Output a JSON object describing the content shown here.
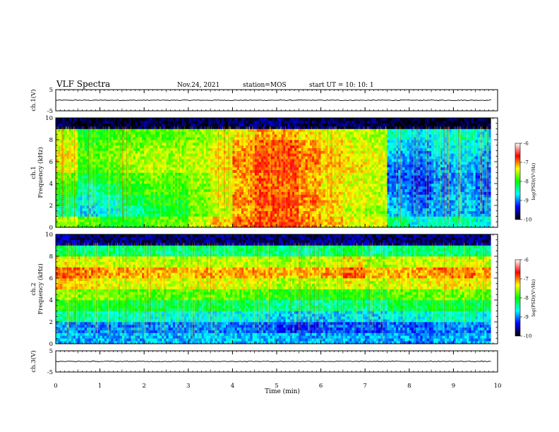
{
  "header": {
    "title": "VLF Spectra",
    "date": "Nov.24, 2021",
    "station": "station=MOS",
    "start": "start  UT  =   10: 10: 1"
  },
  "colorbar": {
    "label": "log(PSD)(V²/Hz)",
    "ticks": [
      "-6",
      "-7",
      "-8",
      "-9",
      "-10"
    ],
    "stops": [
      "#ffffff",
      "#ff0000",
      "#ffff00",
      "#00ff00",
      "#00ffff",
      "#0000ff",
      "#000000"
    ]
  },
  "chart_data": [
    {
      "type": "line",
      "id": "ch1-waveform",
      "ylabel": "ch.1(V)",
      "ylim": [
        -5,
        5
      ],
      "yticks": [
        "5",
        "-5"
      ],
      "x": [
        0,
        1,
        2,
        3,
        4,
        5,
        6,
        7,
        8,
        9,
        9.85
      ],
      "y": [
        0,
        0,
        0,
        0,
        0,
        0,
        0,
        0,
        0,
        0,
        0
      ]
    },
    {
      "type": "heatmap",
      "id": "ch1-spectrogram",
      "ylabel": "ch.1 Frequency (kHz)",
      "xlim": [
        0,
        10
      ],
      "ylim": [
        0,
        10
      ],
      "yticks": [
        "0",
        "2",
        "4",
        "6",
        "8",
        "10"
      ],
      "zlim": [
        -10,
        -6
      ],
      "data_extent_min": 9.85,
      "time_minutes": [
        0,
        0.5,
        1,
        1.5,
        2,
        2.5,
        3,
        3.5,
        4,
        4.5,
        5,
        5.5,
        6,
        6.5,
        7,
        7.5,
        8,
        8.5,
        9,
        9.5
      ],
      "frequency_khz": [
        0.5,
        1.5,
        2.5,
        3.5,
        4.5,
        5.5,
        6.5,
        7.5,
        8.5,
        9.5
      ],
      "log_psd": [
        [
          -7.6,
          -7.8,
          -8.0,
          -8.0,
          -7.8,
          -7.8,
          -7.5,
          -7.2,
          -6.9,
          -6.8,
          -6.8,
          -7.0,
          -7.2,
          -7.4,
          -7.4,
          -8.3,
          -8.6,
          -8.5,
          -8.4,
          -8.6
        ],
        [
          -8.4,
          -8.7,
          -8.6,
          -8.4,
          -8.2,
          -8.1,
          -7.8,
          -7.5,
          -7.1,
          -6.9,
          -6.9,
          -7.1,
          -7.3,
          -7.5,
          -7.6,
          -8.8,
          -9.0,
          -8.9,
          -8.8,
          -9.0
        ],
        [
          -8.2,
          -8.6,
          -8.5,
          -8.2,
          -8.0,
          -8.0,
          -7.7,
          -7.4,
          -7.0,
          -6.8,
          -6.8,
          -7.0,
          -7.2,
          -7.4,
          -7.5,
          -8.9,
          -9.1,
          -8.9,
          -8.8,
          -9.0
        ],
        [
          -8.0,
          -8.4,
          -8.2,
          -8.0,
          -7.8,
          -7.9,
          -7.7,
          -7.4,
          -7.1,
          -6.9,
          -6.9,
          -7.1,
          -7.3,
          -7.4,
          -7.5,
          -9.0,
          -9.2,
          -9.0,
          -8.9,
          -9.1
        ],
        [
          -7.8,
          -8.2,
          -8.0,
          -7.8,
          -7.7,
          -7.8,
          -7.6,
          -7.4,
          -7.1,
          -6.9,
          -6.9,
          -7.1,
          -7.3,
          -7.4,
          -7.5,
          -9.1,
          -9.2,
          -9.0,
          -8.9,
          -9.1
        ],
        [
          -7.4,
          -7.9,
          -7.8,
          -7.6,
          -7.5,
          -7.6,
          -7.5,
          -7.3,
          -7.0,
          -6.8,
          -6.8,
          -7.0,
          -7.2,
          -7.3,
          -7.4,
          -9.0,
          -9.1,
          -8.9,
          -8.8,
          -9.0
        ],
        [
          -7.3,
          -7.8,
          -7.7,
          -7.6,
          -7.5,
          -7.6,
          -7.5,
          -7.3,
          -7.0,
          -6.8,
          -6.8,
          -7.0,
          -7.2,
          -7.3,
          -7.4,
          -8.9,
          -9.0,
          -8.8,
          -8.7,
          -8.9
        ],
        [
          -7.4,
          -7.9,
          -7.8,
          -7.7,
          -7.6,
          -7.7,
          -7.6,
          -7.4,
          -7.1,
          -6.9,
          -6.9,
          -7.1,
          -7.3,
          -7.4,
          -7.5,
          -8.7,
          -8.8,
          -8.6,
          -8.6,
          -8.7
        ],
        [
          -7.6,
          -8.0,
          -7.9,
          -7.8,
          -7.8,
          -7.8,
          -7.7,
          -7.5,
          -7.3,
          -7.1,
          -7.1,
          -7.3,
          -7.4,
          -7.5,
          -7.6,
          -8.5,
          -8.7,
          -8.6,
          -8.5,
          -8.7
        ],
        [
          -9.8,
          -9.9,
          -9.9,
          -9.9,
          -9.8,
          -9.9,
          -9.8,
          -9.8,
          -9.7,
          -9.7,
          -9.7,
          -9.8,
          -9.8,
          -9.8,
          -9.8,
          -9.9,
          -9.9,
          -9.9,
          -9.9,
          -9.9
        ]
      ]
    },
    {
      "type": "heatmap",
      "id": "ch2-spectrogram",
      "ylabel": "ch.2 Frequency (kHz)",
      "xlim": [
        0,
        10
      ],
      "ylim": [
        0,
        10
      ],
      "yticks": [
        "0",
        "2",
        "4",
        "6",
        "8",
        "10"
      ],
      "zlim": [
        -10,
        -6
      ],
      "data_extent_min": 9.85,
      "time_minutes": [
        0,
        0.5,
        1,
        1.5,
        2,
        2.5,
        3,
        3.5,
        4,
        4.5,
        5,
        5.5,
        6,
        6.5,
        7,
        7.5,
        8,
        8.5,
        9,
        9.5
      ],
      "frequency_khz": [
        0.5,
        1.5,
        2.5,
        3.5,
        4.5,
        5.5,
        6.5,
        7.5,
        8.5,
        9.5
      ],
      "log_psd": [
        [
          -8.8,
          -8.9,
          -8.9,
          -8.9,
          -8.8,
          -8.9,
          -8.8,
          -8.8,
          -8.8,
          -8.8,
          -8.8,
          -8.9,
          -8.9,
          -8.9,
          -8.9,
          -8.9,
          -9.0,
          -8.9,
          -8.9,
          -8.9
        ],
        [
          -8.9,
          -9.0,
          -9.0,
          -9.0,
          -9.0,
          -9.0,
          -9.0,
          -9.0,
          -9.0,
          -9.1,
          -9.2,
          -9.2,
          -9.1,
          -9.1,
          -9.2,
          -9.0,
          -9.1,
          -9.0,
          -9.0,
          -9.0
        ],
        [
          -8.4,
          -8.4,
          -8.5,
          -8.5,
          -8.6,
          -8.6,
          -8.6,
          -8.6,
          -8.6,
          -8.7,
          -8.8,
          -8.8,
          -8.8,
          -8.7,
          -8.8,
          -8.6,
          -8.6,
          -8.5,
          -8.5,
          -8.6
        ],
        [
          -8.0,
          -8.0,
          -8.1,
          -8.1,
          -8.2,
          -8.2,
          -8.2,
          -8.2,
          -8.2,
          -8.3,
          -8.4,
          -8.4,
          -8.4,
          -8.3,
          -8.4,
          -8.2,
          -8.2,
          -8.1,
          -8.1,
          -8.2
        ],
        [
          -7.6,
          -7.7,
          -7.7,
          -7.8,
          -7.8,
          -7.8,
          -7.8,
          -7.8,
          -7.8,
          -7.9,
          -8.0,
          -8.0,
          -8.0,
          -7.9,
          -8.0,
          -7.8,
          -7.8,
          -7.7,
          -7.7,
          -7.8
        ],
        [
          -7.2,
          -7.3,
          -7.4,
          -7.4,
          -7.4,
          -7.5,
          -7.4,
          -7.4,
          -7.4,
          -7.5,
          -7.6,
          -7.6,
          -7.5,
          -7.3,
          -7.6,
          -7.4,
          -7.4,
          -7.3,
          -7.3,
          -7.4
        ],
        [
          -6.9,
          -7.0,
          -7.1,
          -7.1,
          -7.1,
          -7.2,
          -7.1,
          -7.1,
          -7.1,
          -7.1,
          -7.2,
          -7.2,
          -7.1,
          -6.9,
          -7.2,
          -7.1,
          -7.1,
          -7.0,
          -7.0,
          -7.1
        ],
        [
          -7.3,
          -7.4,
          -7.5,
          -7.5,
          -7.5,
          -7.6,
          -7.5,
          -7.5,
          -7.5,
          -7.5,
          -7.6,
          -7.6,
          -7.5,
          -7.3,
          -7.6,
          -7.5,
          -7.5,
          -7.4,
          -7.4,
          -7.5
        ],
        [
          -8.2,
          -8.3,
          -8.3,
          -8.3,
          -8.3,
          -8.4,
          -8.3,
          -8.3,
          -8.3,
          -8.3,
          -8.4,
          -8.4,
          -8.3,
          -8.2,
          -8.4,
          -8.3,
          -8.3,
          -8.3,
          -8.3,
          -8.3
        ],
        [
          -9.6,
          -9.7,
          -9.7,
          -9.7,
          -9.7,
          -9.7,
          -9.7,
          -9.7,
          -9.7,
          -9.7,
          -9.7,
          -9.7,
          -9.7,
          -9.6,
          -9.7,
          -9.7,
          -9.7,
          -9.7,
          -9.7,
          -9.7
        ]
      ]
    },
    {
      "type": "line",
      "id": "ch3-waveform",
      "ylabel": "ch.3(V)",
      "ylim": [
        -5,
        5
      ],
      "yticks": [
        "5",
        "-5"
      ],
      "x": [
        0,
        1,
        2,
        3,
        4,
        5,
        6,
        7,
        8,
        9,
        9.85
      ],
      "y": [
        0,
        0,
        0,
        0,
        0,
        0,
        0,
        0,
        0,
        0,
        0
      ]
    }
  ],
  "x_axis": {
    "label": "Time (min)",
    "range": [
      0,
      10
    ],
    "ticks": [
      "0",
      "1",
      "2",
      "3",
      "4",
      "5",
      "6",
      "7",
      "8",
      "9",
      "10"
    ]
  }
}
